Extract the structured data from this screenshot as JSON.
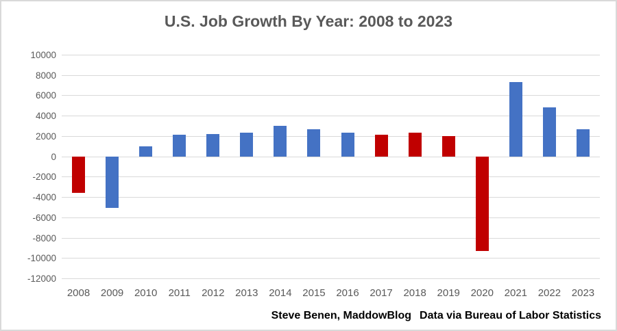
{
  "chart_data": {
    "type": "bar",
    "title": "U.S. Job Growth By Year: 2008 to 2023",
    "categories": [
      "2008",
      "2009",
      "2010",
      "2011",
      "2012",
      "2013",
      "2014",
      "2015",
      "2016",
      "2017",
      "2018",
      "2019",
      "2020",
      "2021",
      "2022",
      "2023"
    ],
    "values": [
      -3600,
      -5100,
      1000,
      2100,
      2200,
      2300,
      3000,
      2700,
      2300,
      2100,
      2300,
      2000,
      -9300,
      7300,
      4800,
      2700
    ],
    "bar_colors": [
      "#C00000",
      "#4472C4",
      "#4472C4",
      "#4472C4",
      "#4472C4",
      "#4472C4",
      "#4472C4",
      "#4472C4",
      "#4472C4",
      "#C00000",
      "#C00000",
      "#C00000",
      "#C00000",
      "#4472C4",
      "#4472C4",
      "#4472C4"
    ],
    "xlabel": "",
    "ylabel": "",
    "ylim": [
      -12000,
      10000
    ],
    "yticks": [
      10000,
      8000,
      6000,
      4000,
      2000,
      0,
      -2000,
      -4000,
      -6000,
      -8000,
      -10000,
      -12000
    ],
    "grid": true,
    "legend": "none"
  },
  "colors": {
    "positive_blue": "#4472C4",
    "negative_red": "#C00000",
    "gridline": "#d9d9d9",
    "axis_text": "#595959",
    "title_text": "#595959",
    "footer_text": "#000000"
  },
  "footer": {
    "credit": "Steve Benen, MaddowBlog",
    "source": "Data via Bureau of Labor Statistics"
  }
}
